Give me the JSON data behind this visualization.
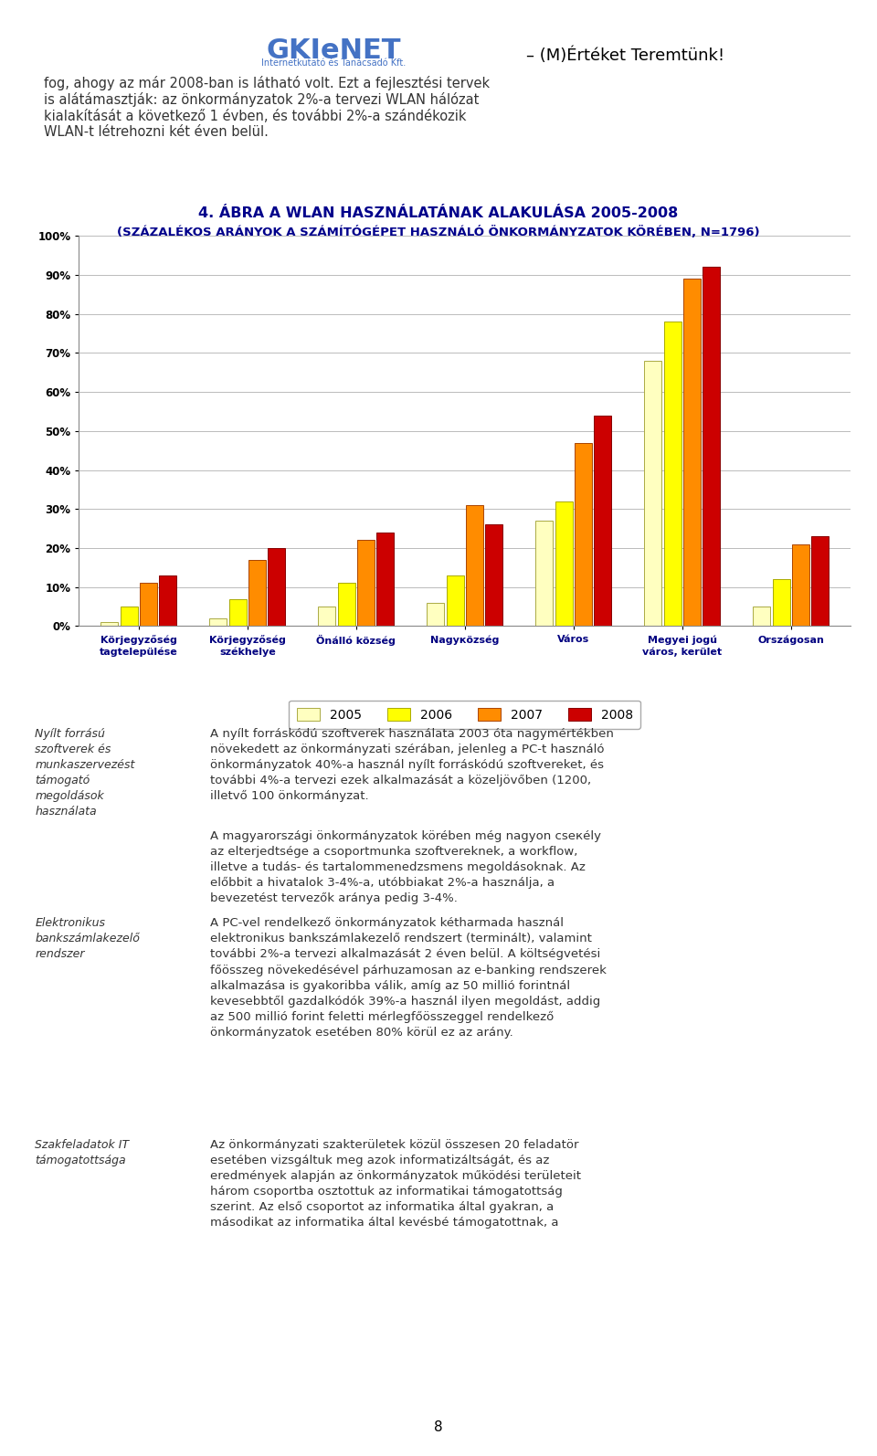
{
  "title_line1": "4. ÁBRA A WLAN HASZNÁLATÁNAK ALAKULÁSA 2005-2008",
  "title_line2": "(SZÁZALÉKOS ARÁNYOK A SZÁMÍTÓGÉPET HASZNÁLÓ ÖNKORMÁNYZATOK KÖRÉBEN, N=1796)",
  "categories": [
    "Körjegyzőség\ntagtelepülése",
    "Körjegyzőség\nszékhelye",
    "Önálló község",
    "Nagyкözség",
    "Város",
    "Megyei jogú\nváros, kerület",
    "Országosan"
  ],
  "series": {
    "2005": [
      1,
      2,
      5,
      6,
      27,
      68,
      5
    ],
    "2006": [
      5,
      7,
      11,
      13,
      32,
      78,
      12
    ],
    "2007": [
      11,
      17,
      22,
      31,
      47,
      89,
      21
    ],
    "2008": [
      13,
      20,
      24,
      26,
      54,
      92,
      23
    ]
  },
  "colors": {
    "2005": "#FFFFC0",
    "2006": "#FFFF00",
    "2007": "#FF8C00",
    "2008": "#CC0000"
  },
  "edge_colors": {
    "2005": "#AAAA44",
    "2006": "#AAAA00",
    "2007": "#AA4400",
    "2008": "#880000"
  },
  "ylim": [
    0,
    100
  ],
  "yticks": [
    0,
    10,
    20,
    30,
    40,
    50,
    60,
    70,
    80,
    90,
    100
  ],
  "ytick_labels": [
    "0%",
    "10%",
    "20%",
    "30%",
    "40%",
    "50%",
    "60%",
    "70%",
    "80%",
    "90%",
    "100%"
  ],
  "title_color": "#00008B",
  "background_color": "#FFFFFF",
  "plot_bg": "#FFFFFF",
  "grid_color": "#BBBBBB",
  "legend_labels": [
    "2005",
    "2006",
    "2007",
    "2008"
  ],
  "header_text": "– (M)Értéket Teremtünk!",
  "para1": "fog, ahogy az már 2008-ban is látható volt. Ezt a fejlesztési tervek\nis alátámasztják: az önkormányzatok 2%-a tervezi WLAN hálózat\nkialakítását a következő 1 évben, és további 2%-a szándékozik\nWLAN-t létrehozni két éven belül.",
  "left_label1": "Nyílt forrású\nszoftverek és\nmunkaszervezést\ntámogató\nmegoldások\nhasználata",
  "left_label2": "Elektronikus\nbankszámlakezelő\nrendszer",
  "left_label3": "Szakfeladatok IT\ntámogatottsága",
  "right_text1": "A nyílt forráskódú szoftverek használata 2003 óta nagymértékben\nnövekedett az önkormányzati szérában, jelenleg a PC-t használó\nönkormányzatok 40%-a használ nyílt forráskódú szoftvereket, és\ntovábbi 4%-a tervezi ezek alkalmazását a közeljövőben (1200,\nilletvő 100 önkormányzat.",
  "right_text2": "A magyarországi önkormányzatok körében még nagyon cseкély\naz elterjedtsége a csoportmunka szoftvereknek, a workflow,\nilletve a tudás- és tartalommenedzsmens megoldásoknak. Az\nelőbbit a hivatalok 3-4%-a, utóbbiakat 2%-a használja, a\nbevezetést tervezők aránya pedig 3-4%.",
  "right_text3": "A PC-vel rendelkező önkormányzatok kétharmada használ\nelektronikus bankszámlakezelő rendszert (terminált), valamint\ntovábbi 2%-a tervezi alkalmazását 2 éven belül. A költségvetési\nfőösszeg növekedésével párhuzamosan az e-banking rendszerek\nalkalmazása is gyakoribba válik, amíg az 50 millió forintnál\nkevesebbtől gazdalkódók 39%-a használ ilyen megoldást, addig\naz 500 millió forint feletti mérlegfőösszeggel rendelkező\nönkormányzatok esetében 80% körül ez az arány.",
  "right_text4": "Az önkormányzati szakterületek közül összesen 20 feladatör\nesetében vizsgáltuk meg azok informatizáltságát, és az\neredmények alapján az önkormányzatok működési területeit\nhárom csoportba osztottuk az informatikai támogatottság\nszerint. Az első csoportot az informatika által gyakran, a\nmásodikat az informatika által kevésbé támogatottnak, a"
}
